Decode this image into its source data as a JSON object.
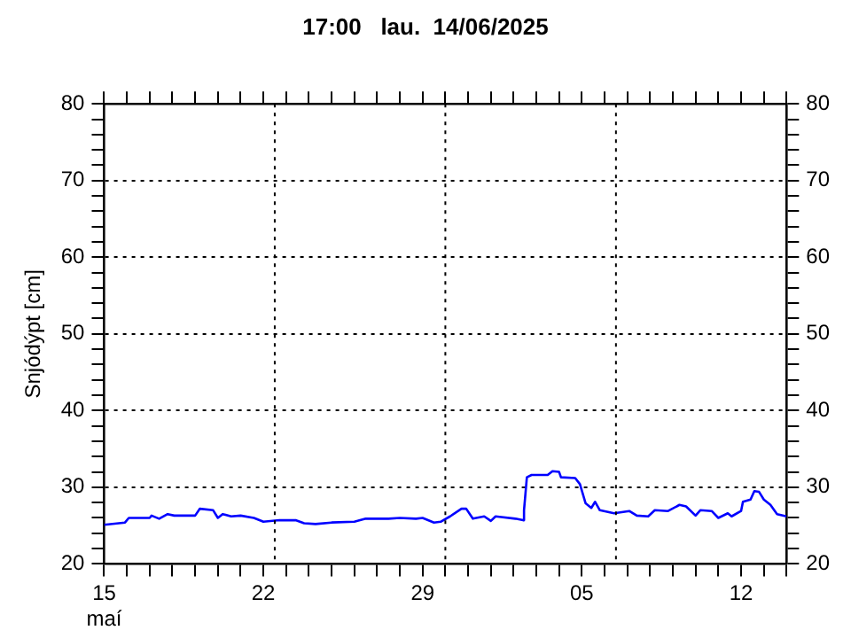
{
  "chart_data": {
    "type": "line",
    "title": "17:00   lau.  14/06/2025",
    "ylabel": "Snjódýpt [cm]",
    "x": [
      "2025-05-15T00:00",
      "2025-05-15T22:00",
      "2025-05-16T02:00",
      "2025-05-17T00:00",
      "2025-05-17T02:00",
      "2025-05-17T10:00",
      "2025-05-17T19:00",
      "2025-05-18T02:00",
      "2025-05-19T00:00",
      "2025-05-19T05:00",
      "2025-05-19T19:00",
      "2025-05-20T00:00",
      "2025-05-20T05:00",
      "2025-05-20T14:00",
      "2025-05-21T00:00",
      "2025-05-21T14:00",
      "2025-05-22T00:00",
      "2025-05-22T17:00",
      "2025-05-23T10:00",
      "2025-05-23T19:00",
      "2025-05-24T07:00",
      "2025-05-25T00:00",
      "2025-05-26T00:00",
      "2025-05-26T12:00",
      "2025-05-27T12:00",
      "2025-05-28T00:00",
      "2025-05-28T17:00",
      "2025-05-29T00:00",
      "2025-05-29T12:00",
      "2025-05-29T19:00",
      "2025-05-30T05:00",
      "2025-05-30T17:00",
      "2025-05-30T22:00",
      "2025-05-31T05:00",
      "2025-05-31T17:00",
      "2025-06-01T00:00",
      "2025-06-01T05:00",
      "2025-06-02T02:00",
      "2025-06-02T10:00",
      "2025-06-02T11:00",
      "2025-06-02T14:00",
      "2025-06-02T19:00",
      "2025-06-03T12:00",
      "2025-06-03T17:00",
      "2025-06-04T00:00",
      "2025-06-04T02:00",
      "2025-06-04T17:00",
      "2025-06-04T22:00",
      "2025-06-05T04:00",
      "2025-06-05T10:00",
      "2025-06-05T14:00",
      "2025-06-05T19:00",
      "2025-06-06T10:00",
      "2025-06-07T02:00",
      "2025-06-07T10:00",
      "2025-06-07T22:00",
      "2025-06-08T05:00",
      "2025-06-08T19:00",
      "2025-06-09T07:00",
      "2025-06-09T14:00",
      "2025-06-10T00:00",
      "2025-06-10T05:00",
      "2025-06-10T17:00",
      "2025-06-11T00:00",
      "2025-06-11T10:00",
      "2025-06-11T14:00",
      "2025-06-12T00:00",
      "2025-06-12T02:00",
      "2025-06-12T10:00",
      "2025-06-12T14:00",
      "2025-06-12T19:00",
      "2025-06-13T00:00",
      "2025-06-13T07:00",
      "2025-06-13T14:00",
      "2025-06-14T00:00"
    ],
    "series": [
      {
        "color": "#0000ff",
        "values": [
          25.1,
          25.4,
          26.0,
          26.0,
          26.3,
          25.9,
          26.5,
          26.3,
          26.3,
          27.2,
          27.0,
          26.0,
          26.5,
          26.2,
          26.3,
          26.0,
          25.5,
          25.7,
          25.7,
          25.3,
          25.2,
          25.4,
          25.5,
          25.9,
          25.9,
          26.0,
          25.9,
          26.0,
          25.4,
          25.5,
          26.2,
          27.2,
          27.2,
          25.9,
          26.2,
          25.6,
          26.2,
          25.9,
          25.7,
          27.0,
          31.3,
          31.6,
          31.6,
          32.1,
          32.0,
          31.3,
          31.2,
          30.4,
          27.9,
          27.3,
          28.1,
          27.0,
          26.6,
          26.9,
          26.3,
          26.2,
          27.0,
          26.9,
          27.7,
          27.5,
          26.3,
          27.0,
          26.9,
          26.0,
          26.6,
          26.2,
          26.9,
          28.1,
          28.4,
          29.5,
          29.4,
          28.4,
          27.7,
          26.5,
          26.2
        ]
      }
    ],
    "xlim": [
      "2025-05-15T00:00",
      "2025-06-14T00:00"
    ],
    "xticks": [
      {
        "value": "2025-05-15",
        "label": "15\nmaí"
      },
      {
        "value": "2025-05-16",
        "label": null
      },
      {
        "value": "2025-05-17",
        "label": null
      },
      {
        "value": "2025-05-18",
        "label": null
      },
      {
        "value": "2025-05-19",
        "label": null
      },
      {
        "value": "2025-05-20",
        "label": null
      },
      {
        "value": "2025-05-21",
        "label": null
      },
      {
        "value": "2025-05-22",
        "label": "22"
      },
      {
        "value": "2025-05-23",
        "label": null
      },
      {
        "value": "2025-05-24",
        "label": null
      },
      {
        "value": "2025-05-25",
        "label": null
      },
      {
        "value": "2025-05-26",
        "label": null
      },
      {
        "value": "2025-05-27",
        "label": null
      },
      {
        "value": "2025-05-28",
        "label": null
      },
      {
        "value": "2025-05-29",
        "label": "29"
      },
      {
        "value": "2025-05-30",
        "label": null
      },
      {
        "value": "2025-05-31",
        "label": null
      },
      {
        "value": "2025-06-01",
        "label": null
      },
      {
        "value": "2025-06-02",
        "label": null
      },
      {
        "value": "2025-06-03",
        "label": null
      },
      {
        "value": "2025-06-04",
        "label": null
      },
      {
        "value": "2025-06-05",
        "label": "05"
      },
      {
        "value": "2025-06-06",
        "label": null
      },
      {
        "value": "2025-06-07",
        "label": null
      },
      {
        "value": "2025-06-08",
        "label": null
      },
      {
        "value": "2025-06-09",
        "label": null
      },
      {
        "value": "2025-06-10",
        "label": null
      },
      {
        "value": "2025-06-11",
        "label": null
      },
      {
        "value": "2025-06-12",
        "label": "12"
      },
      {
        "value": "2025-06-13",
        "label": null
      },
      {
        "value": "2025-06-14",
        "label": null
      }
    ],
    "ylim": [
      20,
      80
    ],
    "yticks": [
      20,
      {
        "value": 22,
        "label": null
      },
      {
        "value": 24,
        "label": null
      },
      {
        "value": 26,
        "label": null
      },
      {
        "value": 28,
        "label": null
      },
      30,
      {
        "value": 32,
        "label": null
      },
      {
        "value": 34,
        "label": null
      },
      {
        "value": 36,
        "label": null
      },
      {
        "value": 38,
        "label": null
      },
      40,
      {
        "value": 42,
        "label": null
      },
      {
        "value": 44,
        "label": null
      },
      {
        "value": 46,
        "label": null
      },
      {
        "value": 48,
        "label": null
      },
      50,
      {
        "value": 52,
        "label": null
      },
      {
        "value": 54,
        "label": null
      },
      {
        "value": 56,
        "label": null
      },
      {
        "value": 58,
        "label": null
      },
      60,
      {
        "value": 62,
        "label": null
      },
      {
        "value": 64,
        "label": null
      },
      {
        "value": 66,
        "label": null
      },
      {
        "value": 68,
        "label": null
      },
      70,
      {
        "value": 72,
        "label": null
      },
      {
        "value": 74,
        "label": null
      },
      {
        "value": 76,
        "label": null
      },
      {
        "value": 78,
        "label": null
      },
      80
    ],
    "y2lim": [
      20,
      80
    ],
    "y2ticks": [
      20,
      {
        "value": 22,
        "label": null
      },
      {
        "value": 24,
        "label": null
      },
      {
        "value": 26,
        "label": null
      },
      {
        "value": 28,
        "label": null
      },
      30,
      {
        "value": 32,
        "label": null
      },
      {
        "value": 34,
        "label": null
      },
      {
        "value": 36,
        "label": null
      },
      {
        "value": 38,
        "label": null
      },
      40,
      {
        "value": 42,
        "label": null
      },
      {
        "value": 44,
        "label": null
      },
      {
        "value": 46,
        "label": null
      },
      {
        "value": 48,
        "label": null
      },
      50,
      {
        "value": 52,
        "label": null
      },
      {
        "value": 54,
        "label": null
      },
      {
        "value": 56,
        "label": null
      },
      {
        "value": 58,
        "label": null
      },
      60,
      {
        "value": 62,
        "label": null
      },
      {
        "value": 64,
        "label": null
      },
      {
        "value": 66,
        "label": null
      },
      {
        "value": 68,
        "label": null
      },
      70,
      {
        "value": 72,
        "label": null
      },
      {
        "value": 74,
        "label": null
      },
      {
        "value": 76,
        "label": null
      },
      {
        "value": 78,
        "label": null
      },
      80
    ],
    "grid": "y",
    "ref_lines": [
      {
        "axis": "x",
        "value": "2025-05-22T12:00",
        "color": "#000000",
        "line_style": "dotted"
      },
      {
        "axis": "x",
        "value": "2025-05-30T00:00",
        "color": "#000000",
        "line_style": "dotted"
      },
      {
        "axis": "x",
        "value": "2025-06-06T12:00",
        "color": "#000000",
        "line_style": "dotted"
      }
    ]
  }
}
